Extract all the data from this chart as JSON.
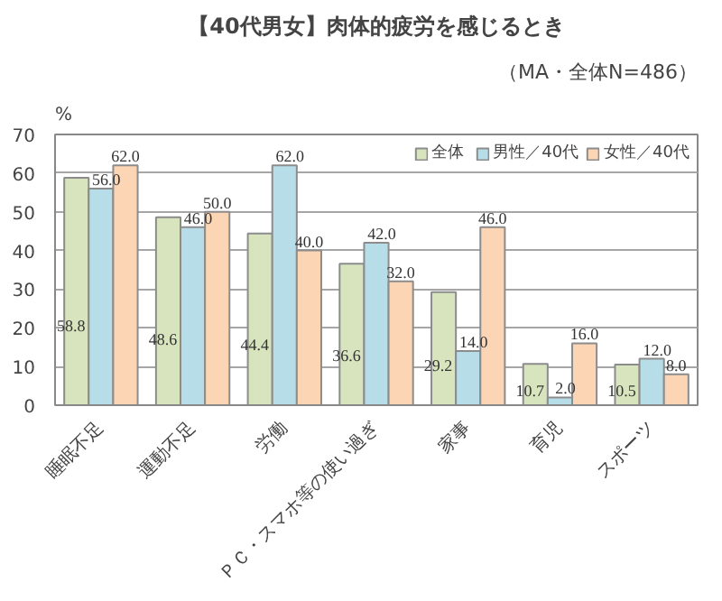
{
  "chart_data": {
    "type": "bar",
    "title": "【40代男女】肉体的疲労を感じるとき",
    "annotations": [
      "（MA・全体N=486）"
    ],
    "ylabel": "%",
    "categories": [
      "睡眠不足",
      "運動不足",
      "労働",
      "ＰＣ・スマホ等の使い過ぎ",
      "家事",
      "育児",
      "スポーツ"
    ],
    "series": [
      {
        "name": "全体",
        "color": "#d7e4bd",
        "values": [
          58.8,
          48.6,
          44.4,
          36.6,
          29.2,
          10.7,
          10.5
        ],
        "value_labels": [
          "58.8",
          "48.6",
          "44.4",
          "36.6",
          "29.2",
          "10.7",
          "10.5"
        ]
      },
      {
        "name": "男性／40代",
        "color": "#b7dee8",
        "values": [
          56.0,
          46.0,
          62.0,
          42.0,
          14.0,
          2.0,
          12.0
        ],
        "value_labels": [
          "56.0",
          "46.0",
          "62.0",
          "42.0",
          "14.0",
          "2.0",
          "12.0"
        ]
      },
      {
        "name": "女性／40代",
        "color": "#fcd5b5",
        "values": [
          62.0,
          50.0,
          40.0,
          32.0,
          46.0,
          16.0,
          8.0
        ],
        "value_labels": [
          "62.0",
          "50.0",
          "40.0",
          "32.0",
          "46.0",
          "16.0",
          "8.0"
        ]
      }
    ],
    "ylim": [
      0,
      70
    ],
    "yticks": [
      0,
      10,
      20,
      30,
      40,
      50,
      60,
      70
    ],
    "grid": "y",
    "legend": "top right"
  }
}
